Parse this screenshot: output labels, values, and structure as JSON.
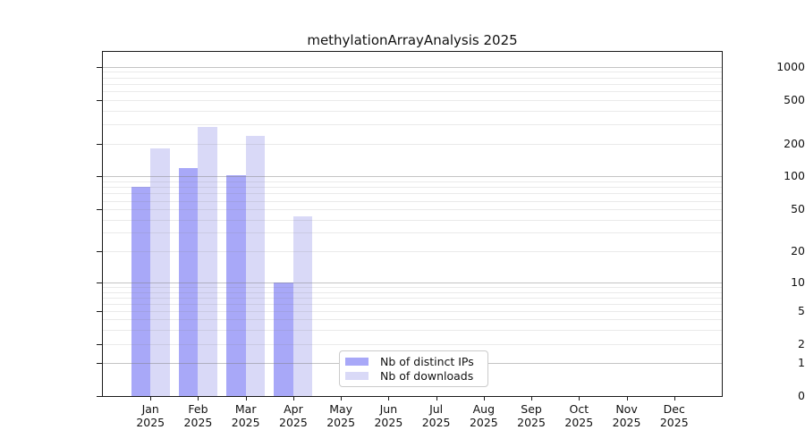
{
  "chart_data": {
    "type": "bar",
    "title": "methylationArrayAnalysis 2025",
    "categories": [
      "Jan",
      "Feb",
      "Mar",
      "Apr",
      "May",
      "Jun",
      "Jul",
      "Aug",
      "Sep",
      "Oct",
      "Nov",
      "Dec"
    ],
    "category_year": "2025",
    "series": [
      {
        "name": "Nb of distinct IPs",
        "color": "#a8a8f8",
        "values": [
          80,
          118,
          102,
          10,
          0,
          0,
          0,
          0,
          0,
          0,
          0,
          0
        ]
      },
      {
        "name": "Nb of downloads",
        "color": "#d9d9f7",
        "values": [
          182,
          285,
          237,
          43,
          0,
          0,
          0,
          0,
          0,
          0,
          0,
          0
        ]
      }
    ],
    "y_axis": {
      "scale": "log-like",
      "ticks": [
        {
          "label": "0",
          "value": 0,
          "pos": 1.0
        },
        {
          "label": "1",
          "value": 1,
          "pos": 0.9047
        },
        {
          "label": "2",
          "value": 2,
          "pos": 0.8503
        },
        {
          "label": "5",
          "value": 5,
          "pos": 0.7527
        },
        {
          "label": "10",
          "value": 10,
          "pos": 0.6712
        },
        {
          "label": "20",
          "value": 20,
          "pos": 0.5793
        },
        {
          "label": "50",
          "value": 50,
          "pos": 0.4583
        },
        {
          "label": "100",
          "value": 100,
          "pos": 0.3609
        },
        {
          "label": "200",
          "value": 200,
          "pos": 0.2685
        },
        {
          "label": "500",
          "value": 500,
          "pos": 0.139
        },
        {
          "label": "1000",
          "value": 1000,
          "pos": 0.044
        }
      ],
      "grid_major": [
        1,
        10,
        100,
        1000
      ],
      "grid_minor": [
        2,
        3,
        4,
        5,
        6,
        7,
        8,
        9,
        20,
        30,
        40,
        50,
        60,
        70,
        80,
        90,
        200,
        300,
        400,
        500,
        600,
        700,
        800,
        900
      ]
    },
    "x_axis": {
      "label_line2": "2025"
    },
    "legend": {
      "position": "bottom-center"
    }
  }
}
